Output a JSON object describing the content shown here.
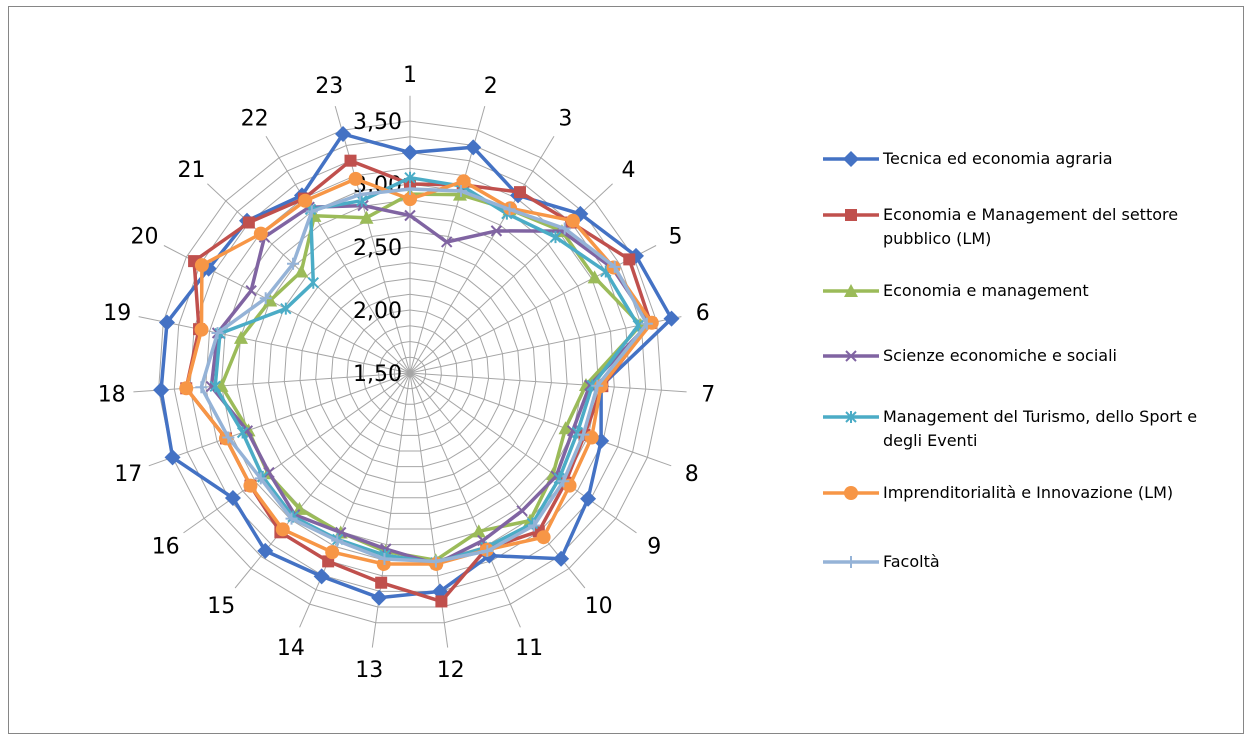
{
  "chart_data": {
    "type": "radar",
    "categories": [
      "1",
      "2",
      "3",
      "4",
      "5",
      "6",
      "7",
      "8",
      "9",
      "10",
      "11",
      "12",
      "13",
      "14",
      "15",
      "16",
      "17",
      "18",
      "19",
      "20",
      "21",
      "22",
      "23"
    ],
    "radial_range": [
      1.5,
      3.5
    ],
    "radial_ticks": [
      "1,50",
      "2,00",
      "2,50",
      "3,00",
      "3,50"
    ],
    "grid": true,
    "legend_position": "right",
    "series": [
      {
        "name": "Tecnica ed economia agraria",
        "color": "#4472C4",
        "marker": "diamond",
        "values": [
          3.25,
          3.36,
          3.15,
          3.35,
          3.52,
          3.62,
          3.02,
          3.11,
          3.23,
          3.4,
          3.08,
          3.25,
          3.3,
          3.26,
          3.32,
          3.22,
          3.5,
          3.48,
          3.47,
          3.3,
          3.27,
          3.15,
          3.47
        ]
      },
      {
        "name": "Economia e Management del settore pubblico (LM)",
        "color": "#C0504D",
        "marker": "square",
        "values": [
          3.0,
          3.05,
          3.18,
          3.25,
          3.46,
          3.45,
          3.03,
          2.97,
          3.01,
          3.12,
          3.02,
          3.33,
          3.18,
          3.13,
          3.13,
          3.05,
          3.05,
          3.28,
          3.21,
          3.43,
          3.25,
          3.12,
          3.25
        ]
      },
      {
        "name": "Economia e management",
        "color": "#9BBB59",
        "marker": "triangle",
        "values": [
          2.92,
          2.97,
          3.02,
          3.15,
          3.15,
          3.37,
          2.9,
          2.81,
          2.89,
          3.01,
          2.87,
          3.0,
          2.93,
          2.88,
          2.89,
          2.88,
          2.86,
          3.0,
          2.87,
          2.75,
          2.68,
          2.96,
          2.78
        ]
      },
      {
        "name": "Scienze economiche e sociali",
        "color": "#8064A2",
        "marker": "x",
        "values": [
          2.75,
          2.58,
          2.82,
          3.15,
          3.31,
          3.44,
          2.93,
          2.87,
          2.92,
          2.91,
          2.95,
          3.03,
          2.91,
          2.88,
          2.95,
          2.87,
          2.87,
          3.08,
          3.06,
          2.92,
          3.08,
          3.04,
          2.88
        ]
      },
      {
        "name": "Management del Turismo, dello Sport e degli Eventi",
        "color": "#4BACC6",
        "marker": "star",
        "values": [
          3.05,
          3.04,
          2.98,
          3.08,
          3.25,
          3.35,
          2.95,
          2.91,
          2.95,
          3.04,
          3.01,
          3.02,
          2.96,
          2.94,
          2.97,
          2.93,
          2.91,
          3.05,
          3.04,
          2.61,
          2.55,
          3.02,
          2.92
        ]
      },
      {
        "name": "Imprenditorialità e Innovazione (LM)",
        "color": "#F79646",
        "marker": "circle",
        "values": [
          2.88,
          3.08,
          3.03,
          3.27,
          3.32,
          3.46,
          3.02,
          3.03,
          3.05,
          3.18,
          3.03,
          3.03,
          3.03,
          3.05,
          3.1,
          3.05,
          3.05,
          3.28,
          3.19,
          3.36,
          3.12,
          3.1,
          3.1
        ]
      },
      {
        "name": "Facoltà",
        "color": "#95B3D7",
        "marker": "plus",
        "values": [
          2.96,
          3.0,
          3.02,
          3.18,
          3.33,
          3.42,
          2.99,
          2.96,
          2.99,
          3.06,
          3.04,
          3.01,
          2.99,
          2.95,
          2.99,
          2.95,
          3.03,
          3.16,
          3.06,
          2.79,
          2.77,
          3.0,
          2.97
        ]
      }
    ]
  }
}
